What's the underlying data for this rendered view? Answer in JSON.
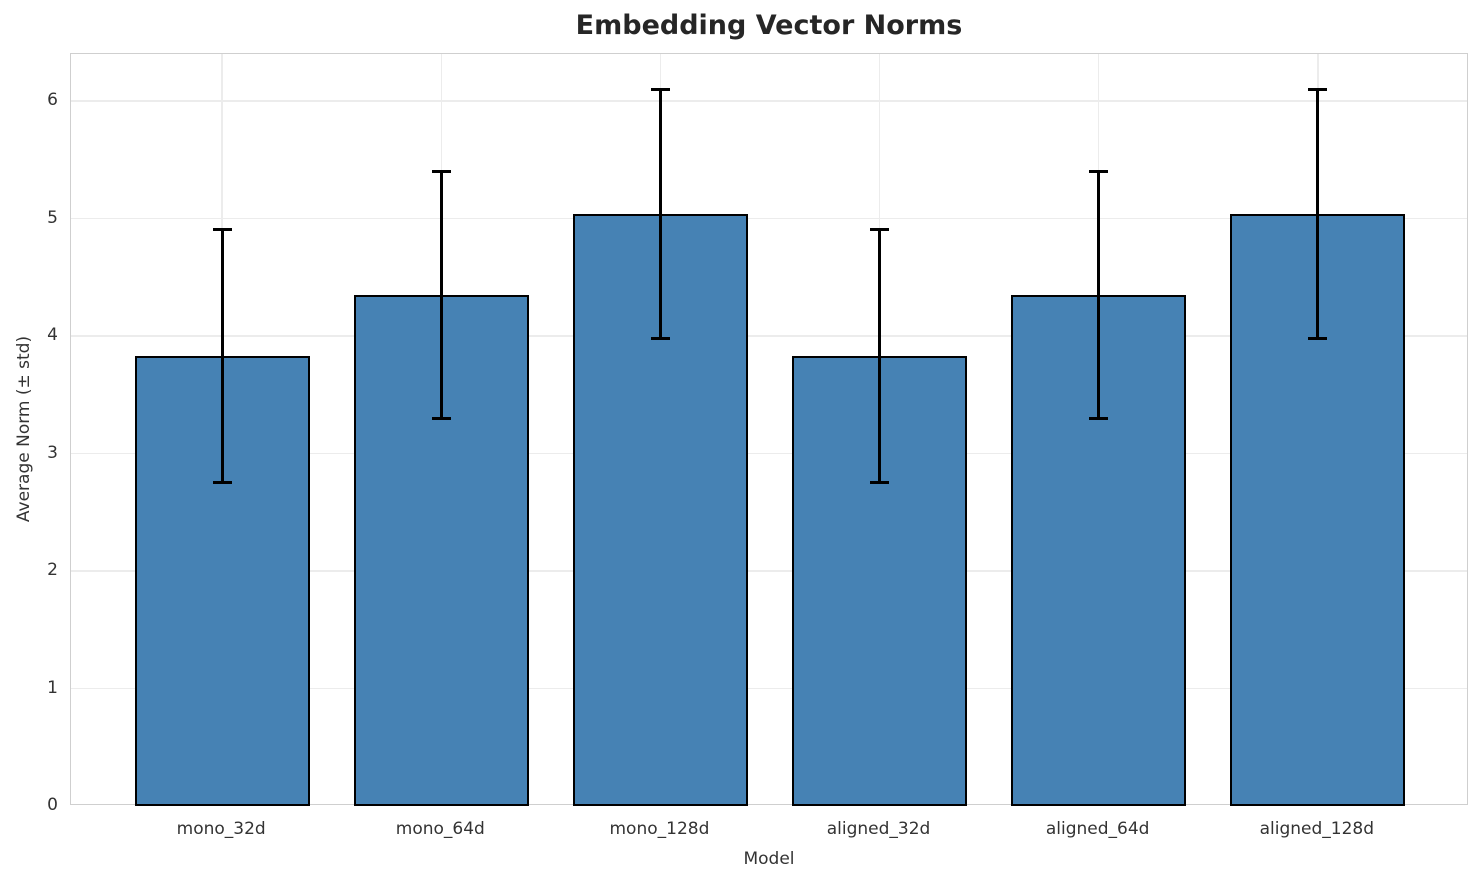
{
  "chart_data": {
    "type": "bar",
    "title": "Embedding Vector Norms",
    "xlabel": "Model",
    "ylabel": "Average Norm (± std)",
    "categories": [
      "mono_32d",
      "mono_64d",
      "mono_128d",
      "aligned_32d",
      "aligned_64d",
      "aligned_128d"
    ],
    "values": [
      3.83,
      4.35,
      5.04,
      3.83,
      4.35,
      5.04
    ],
    "errors": [
      1.08,
      1.05,
      1.06,
      1.08,
      1.05,
      1.06
    ],
    "yticks": [
      0,
      1,
      2,
      3,
      4,
      5,
      6
    ],
    "ylim": [
      0,
      6.4
    ],
    "grid": "both",
    "legend": "none",
    "colors": {
      "bar_fill": "#4682b4",
      "bar_edge": "#000000",
      "error_bar": "#000000",
      "grid": "#ececec",
      "spine": "#cfcfcf",
      "tick_text": "#333333",
      "title_text": "#262626",
      "background": "#ffffff"
    }
  }
}
